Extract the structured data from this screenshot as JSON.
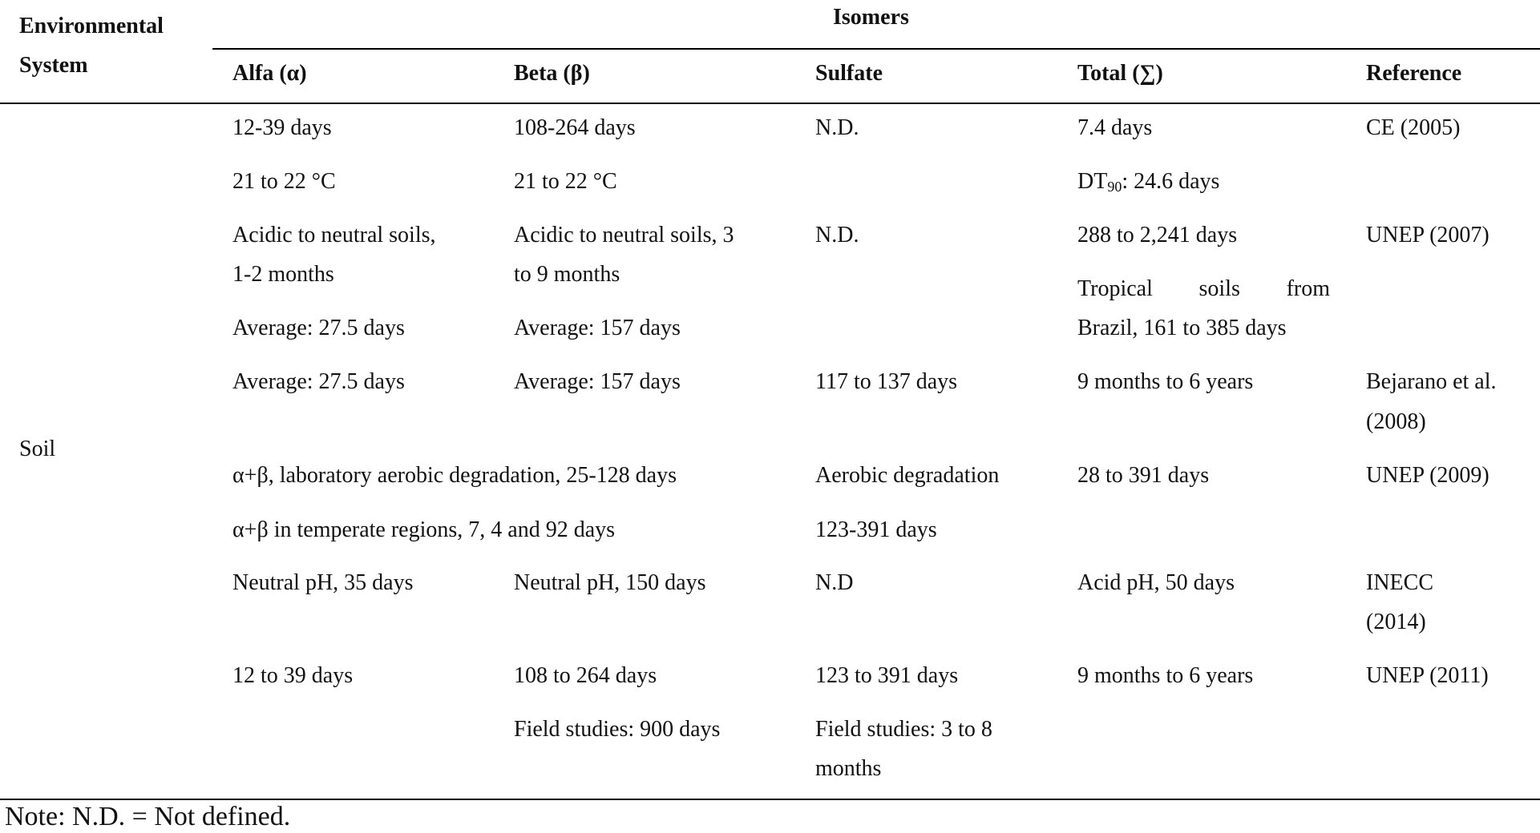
{
  "header": {
    "env_line1": "Environmental",
    "env_line2": "System",
    "isomers": "Isomers",
    "alfa": "Alfa (α)",
    "beta": "Beta (β)",
    "sulfate": "Sulfate",
    "total": "Total (∑)",
    "reference": "Reference"
  },
  "system": "Soil",
  "rows": {
    "ce": {
      "alfa1": "12-39 days",
      "alfa2": "21 to 22 °C",
      "beta1": "108-264 days",
      "beta2": "21 to 22 °C",
      "sulfate": "N.D.",
      "total1": "7.4 days",
      "dt": "DT",
      "dt_sub": "90",
      "dt_rest": ": 24.6 days",
      "ref": "CE (2005)"
    },
    "unep2007": {
      "alfa1": "Acidic to neutral soils,",
      "alfa2": "1-2 months",
      "alfa3": "Average: 27.5 days",
      "beta1": "Acidic to neutral soils, 3",
      "beta2": "to 9 months",
      "beta3": "Average: 157 days",
      "sulfate": "N.D.",
      "total1": "288 to 2,241 days",
      "total2a": "Tropical",
      "total2b": "soils",
      "total2c": "from",
      "total3": "Brazil, 161 to 385 days",
      "ref": "UNEP (2007)"
    },
    "bejarano": {
      "alfa": "Average: 27.5 days",
      "beta": "Average: 157 days",
      "sulfate": "117 to 137 days",
      "total": "9 months to 6 years",
      "ref1": "Bejarano et al.",
      "ref2": "(2008)"
    },
    "unep2009": {
      "ab1": "α+β, laboratory aerobic degradation, 25-128 days",
      "ab2": "α+β in temperate regions, 7, 4 and 92 days",
      "sulfate1": "Aerobic degradation",
      "sulfate2": "123-391 days",
      "total": "28 to 391 days",
      "ref": "UNEP (2009)"
    },
    "inecc": {
      "alfa": "Neutral pH, 35 days",
      "beta": "Neutral pH, 150 days",
      "sulfate": "N.D",
      "total": "Acid pH, 50 days",
      "ref1": "INECC",
      "ref2": "(2014)"
    },
    "unep2011": {
      "alfa": "12 to 39 days",
      "beta1": "108 to 264 days",
      "beta2": "Field studies: 900 days",
      "sulfate1": "123 to 391 days",
      "sulfate2": "Field studies: 3 to 8",
      "sulfate3": "months",
      "total": "9 months to 6 years",
      "ref": "UNEP (2011)"
    }
  },
  "note": "Note: N.D. = Not defined."
}
